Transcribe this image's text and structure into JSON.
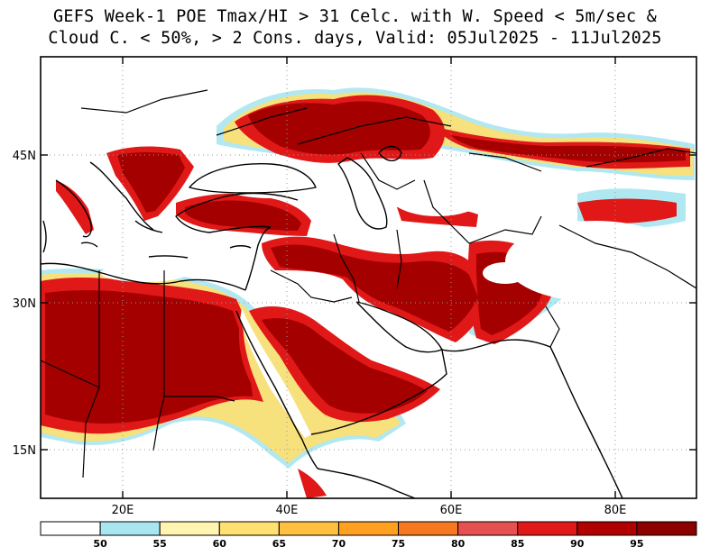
{
  "title": {
    "line1": "GEFS Week-1 POE Tmax/HI > 31 Celc. with W. Speed < 5m/sec &",
    "line2": "Cloud C. < 50%, > 2 Cons. days, Valid: 05Jul2025 - 11Jul2025"
  },
  "map": {
    "region": "Middle East, North Africa, Southern Europe and Central Asia",
    "lon_labels": [
      "20E",
      "40E",
      "60E",
      "80E"
    ],
    "lat_labels": [
      "45N",
      "30N",
      "15N"
    ],
    "grid": "dotted"
  },
  "colorbar": {
    "labels": [
      "50",
      "55",
      "60",
      "65",
      "70",
      "75",
      "80",
      "85",
      "90",
      "95"
    ],
    "colors": [
      "#ffffff",
      "#a8e6f0",
      "#fff4b0",
      "#ffe070",
      "#ffc040",
      "#ffa020",
      "#f87820",
      "#e65050",
      "#e01818",
      "#b00000",
      "#8c0000"
    ]
  }
}
